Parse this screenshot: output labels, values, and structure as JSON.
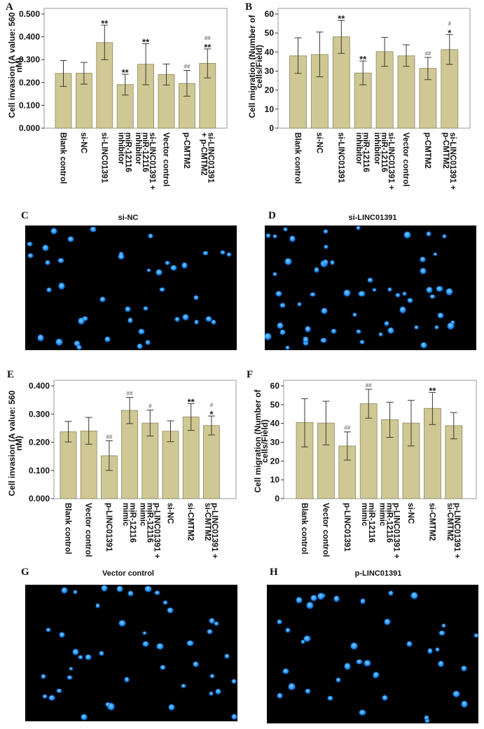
{
  "panels": {
    "A": "A",
    "B": "B",
    "C": "C",
    "D": "D",
    "E": "E",
    "F": "F",
    "G": "G",
    "H": "H"
  },
  "images": {
    "C": {
      "title": "si-NC"
    },
    "D": {
      "title": "si-LINC01391"
    },
    "G": {
      "title": "Vector control"
    },
    "H": {
      "title": "p-LINC01391"
    }
  },
  "colors": {
    "bar": "#cfc894",
    "bar_edge": "#8c875e",
    "cell": "#1e8fff"
  },
  "chart_data": [
    {
      "id": "A",
      "type": "bar",
      "ylabel": [
        "Cell invasion (A value: 560",
        "nM)"
      ],
      "ylim": [
        0,
        0.5
      ],
      "ytick_step": 0.1,
      "ytick_decimals": 3,
      "categories": [
        [
          "Blank control"
        ],
        [
          "si-NC"
        ],
        [
          "si-LINC01391"
        ],
        [
          "miR-12116",
          "inhibitor"
        ],
        [
          "si-LINC01391 +",
          "miR-12116",
          "inhibitor"
        ],
        [
          "Vector control"
        ],
        [
          "p-CMTM2"
        ],
        [
          "si-LINC01391",
          "+ p-CMTM2"
        ]
      ],
      "values": [
        0.24,
        0.241,
        0.375,
        0.191,
        0.28,
        0.235,
        0.196,
        0.284
      ],
      "err_upper": [
        0.296,
        0.288,
        0.451,
        0.236,
        0.37,
        0.281,
        0.253,
        0.347
      ],
      "err_lower": [
        0.183,
        0.193,
        0.3,
        0.145,
        0.19,
        0.189,
        0.14,
        0.22
      ],
      "annotations": [
        [],
        [],
        [
          "**"
        ],
        [
          "**"
        ],
        [
          "**"
        ],
        [],
        [
          "##"
        ],
        [
          "##",
          "**"
        ]
      ]
    },
    {
      "id": "B",
      "type": "bar",
      "ylabel": [
        "Cell migration (Number of",
        "cells/Field)"
      ],
      "ylim": [
        0,
        60
      ],
      "ytick_step": 10,
      "ytick_decimals": 0,
      "categories": [
        [
          "Blank control"
        ],
        [
          "si-NC"
        ],
        [
          "si-LINC01391"
        ],
        [
          "miR-12116",
          "inhibitor"
        ],
        [
          "si-LINC01391 +",
          "miR-12116",
          "inhibitor"
        ],
        [
          "Vector control"
        ],
        [
          "p-CMTM2"
        ],
        [
          "si-LINC01391 +",
          "p-CMTM2"
        ]
      ],
      "values": [
        38.0,
        38.7,
        48.0,
        29.0,
        40.2,
        38.0,
        31.4,
        41.3
      ],
      "err_upper": [
        47.5,
        50.5,
        56.6,
        35.3,
        47.7,
        43.8,
        37.2,
        49.2
      ],
      "err_lower": [
        28.8,
        27.0,
        39.3,
        22.8,
        32.5,
        32.5,
        25.5,
        33.5
      ],
      "annotations": [
        [],
        [],
        [
          "**"
        ],
        [
          "**"
        ],
        [],
        [],
        [
          "##"
        ],
        [
          "#",
          "*"
        ]
      ]
    },
    {
      "id": "E",
      "type": "bar",
      "ylabel": [
        "Cell invasion (A value: 560",
        "nM)"
      ],
      "ylim": [
        0,
        0.4
      ],
      "ytick_step": 0.1,
      "ytick_decimals": 3,
      "categories": [
        [
          "Blank control"
        ],
        [
          "Vector control"
        ],
        [
          "p-LINC01391"
        ],
        [
          "miR-12116",
          "mimic"
        ],
        [
          "p-LINC01391 +",
          "miR-12116",
          "mimic"
        ],
        [
          "si-NC"
        ],
        [
          "si-CMTM2"
        ],
        [
          "p-LINC01391 +",
          "si-CMTM2"
        ]
      ],
      "values": [
        0.237,
        0.24,
        0.152,
        0.313,
        0.268,
        0.239,
        0.29,
        0.259
      ],
      "err_upper": [
        0.274,
        0.288,
        0.205,
        0.359,
        0.314,
        0.276,
        0.337,
        0.293
      ],
      "err_lower": [
        0.201,
        0.193,
        0.1,
        0.266,
        0.222,
        0.202,
        0.242,
        0.226
      ],
      "annotations": [
        [],
        [],
        [
          "##"
        ],
        [
          "##"
        ],
        [
          "#"
        ],
        [],
        [
          "**"
        ],
        [
          "#",
          "*"
        ]
      ]
    },
    {
      "id": "F",
      "type": "bar",
      "ylabel": [
        "Cell migration (Number of",
        "cells/Field)"
      ],
      "ylim": [
        0,
        60
      ],
      "ytick_step": 10,
      "ytick_decimals": 0,
      "categories": [
        [
          "Blank control"
        ],
        [
          "Vector control"
        ],
        [
          "p-LINC01391"
        ],
        [
          "miR-12116",
          "mimic"
        ],
        [
          "p-LINC01391 +",
          "miR-12116",
          "mimic"
        ],
        [
          "si-NC"
        ],
        [
          "si-CMTM2"
        ],
        [
          "p-LINC01391 +",
          "si-CMTM2"
        ]
      ],
      "values": [
        40.5,
        40.2,
        28.0,
        50.5,
        42.0,
        40.2,
        48.0,
        38.8
      ],
      "err_upper": [
        53.2,
        51.8,
        35.5,
        58.2,
        51.3,
        52.3,
        56.5,
        45.8
      ],
      "err_lower": [
        27.5,
        28.6,
        20.5,
        42.8,
        32.6,
        28.0,
        39.4,
        31.8
      ],
      "annotations": [
        [],
        [],
        [
          "##"
        ],
        [
          "##"
        ],
        [],
        [],
        [
          "**"
        ],
        []
      ]
    }
  ]
}
